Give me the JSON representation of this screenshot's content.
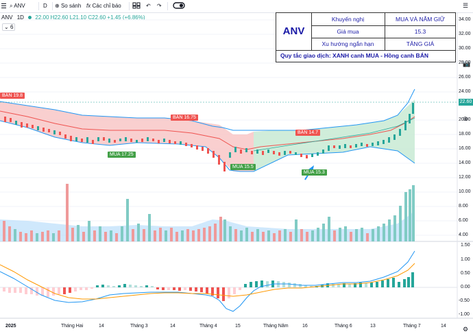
{
  "toolbar": {
    "symbol": "ANV",
    "interval": "D",
    "compare_label": "So sánh",
    "indicators_label": "Các chỉ báo"
  },
  "legend": {
    "symbol": "ANV",
    "interval": "1D",
    "ohlc": "22.00 H22.60 L21.10 C22.60 +1.45 (+6.86%)",
    "indicator_count": "6"
  },
  "info_table": {
    "ticker": "ANV",
    "rows": [
      {
        "label": "Khuyến nghị",
        "value": "MUA VÀ NẮM GIỮ"
      },
      {
        "label": "Giá mua",
        "value": "15.3"
      },
      {
        "label": "Xu hướng ngắn hạn",
        "value": "TĂNG GIÁ"
      }
    ],
    "rule": "Quy tắc giao dịch: XANH canh MUA - Hồng canh BÁN"
  },
  "price_axis": [
    "34.00",
    "32.00",
    "30.00",
    "28.00",
    "26.00",
    "24.00",
    "22.60",
    "20.00",
    "18.00",
    "16.00",
    "14.00",
    "12.00",
    "10.00",
    "8.00",
    "6.00",
    "4.00"
  ],
  "osc_axis": [
    "1.50",
    "1.00",
    "0.50",
    "0.00",
    "-0.50",
    "-1.00"
  ],
  "time_axis": [
    "2025",
    "Tháng Hai",
    "14",
    "Tháng 3",
    "14",
    "Tháng 4",
    "15",
    "Tháng Năm",
    "16",
    "Tháng 6",
    "13",
    "Tháng 7",
    "14"
  ],
  "signals": [
    {
      "type": "sell",
      "text": "BÁN 19.8"
    },
    {
      "type": "sell",
      "text": "BÁN 16.75"
    },
    {
      "type": "sell",
      "text": "BÁN 14.7"
    },
    {
      "type": "buy",
      "text": "MUA 17.25"
    },
    {
      "type": "buy",
      "text": "MUA 15.5"
    },
    {
      "type": "buy",
      "text": "MUA 15.3"
    }
  ],
  "last_price": "22.60",
  "colors": {
    "up": "#26a69a",
    "down": "#ef5350",
    "sell_label": "#ef5350",
    "buy_label": "#43a047",
    "band": "#2196f3",
    "zone_red": "#f8c7c7",
    "zone_green": "#c8ead3"
  }
}
